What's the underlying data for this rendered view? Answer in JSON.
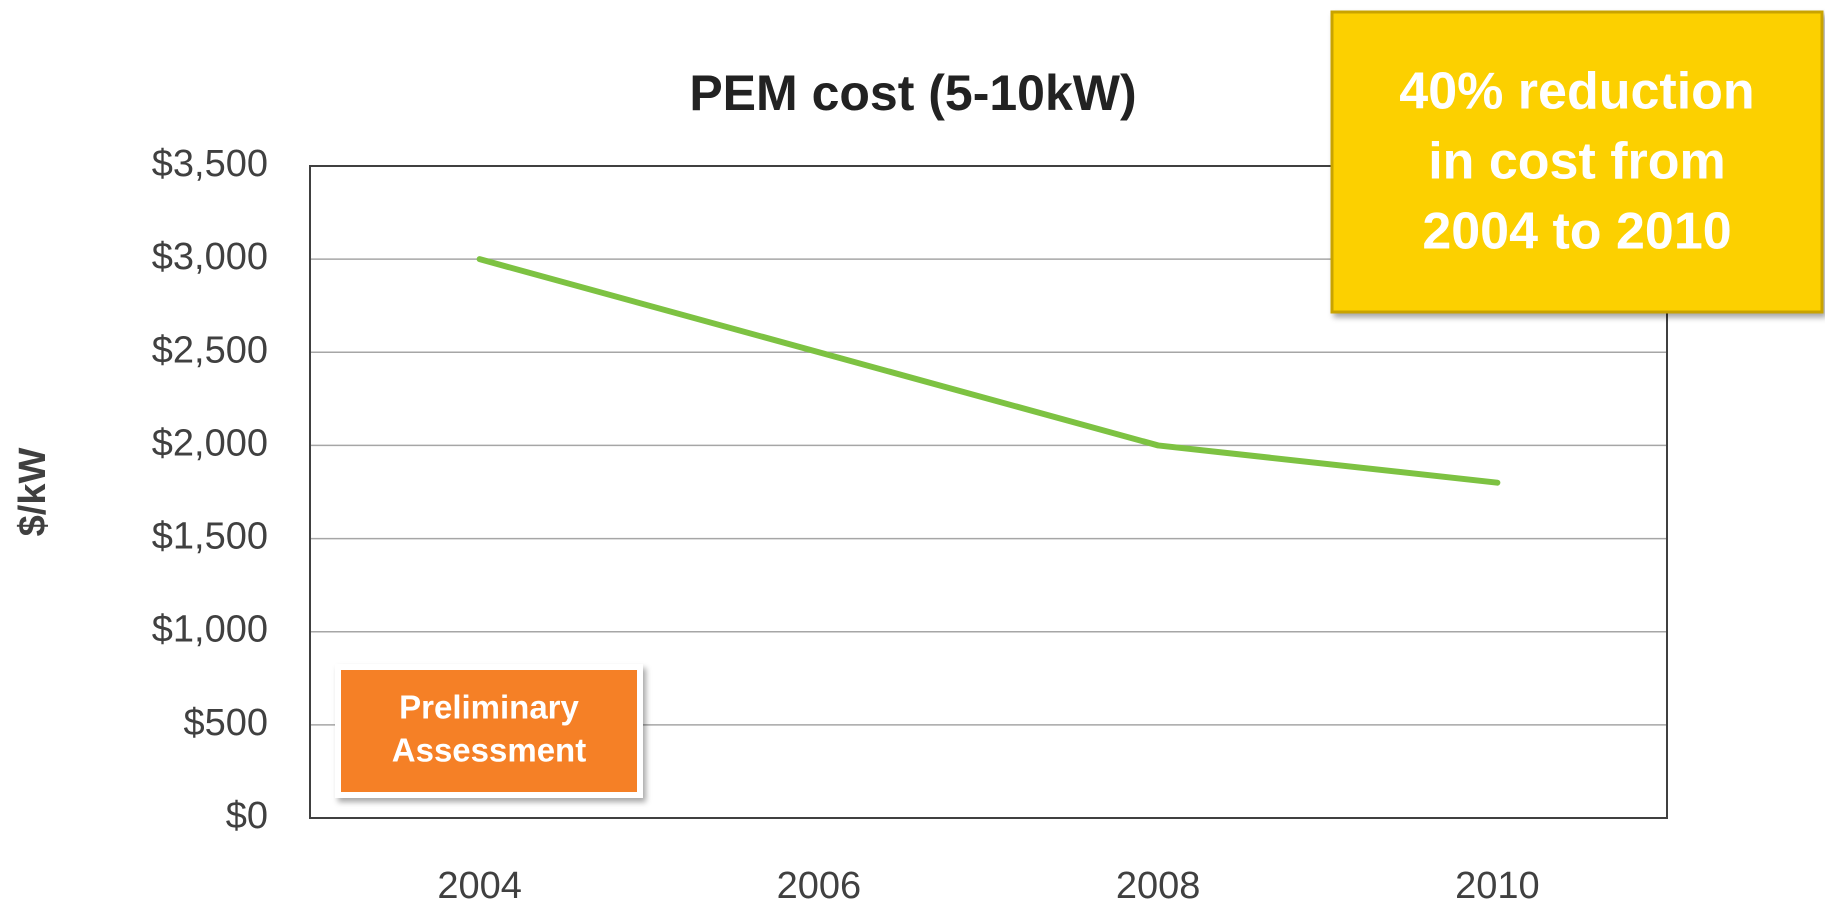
{
  "chart_data": {
    "type": "line",
    "title": "PEM cost (5-10kW)",
    "ylabel": "$/kW",
    "categories": [
      "2004",
      "2006",
      "2008",
      "2010"
    ],
    "series": [
      {
        "name": "PEM cost",
        "color": "#7dc242",
        "values": [
          3000,
          2500,
          2000,
          1800
        ]
      }
    ],
    "ylim": [
      0,
      3500
    ],
    "yticks": [
      {
        "value": 0,
        "label": "$0"
      },
      {
        "value": 500,
        "label": "$500"
      },
      {
        "value": 1000,
        "label": "$1,000"
      },
      {
        "value": 1500,
        "label": "$1,500"
      },
      {
        "value": 2000,
        "label": "$2,000"
      },
      {
        "value": 2500,
        "label": "$2,500"
      },
      {
        "value": 3000,
        "label": "$3,000"
      },
      {
        "value": 3500,
        "label": "$3,500"
      }
    ],
    "grid": true,
    "annotations": [
      {
        "lines": [
          "40% reduction",
          "in cost from",
          "2004 to 2010"
        ]
      },
      {
        "lines": [
          "Preliminary",
          "Assessment"
        ]
      }
    ]
  }
}
